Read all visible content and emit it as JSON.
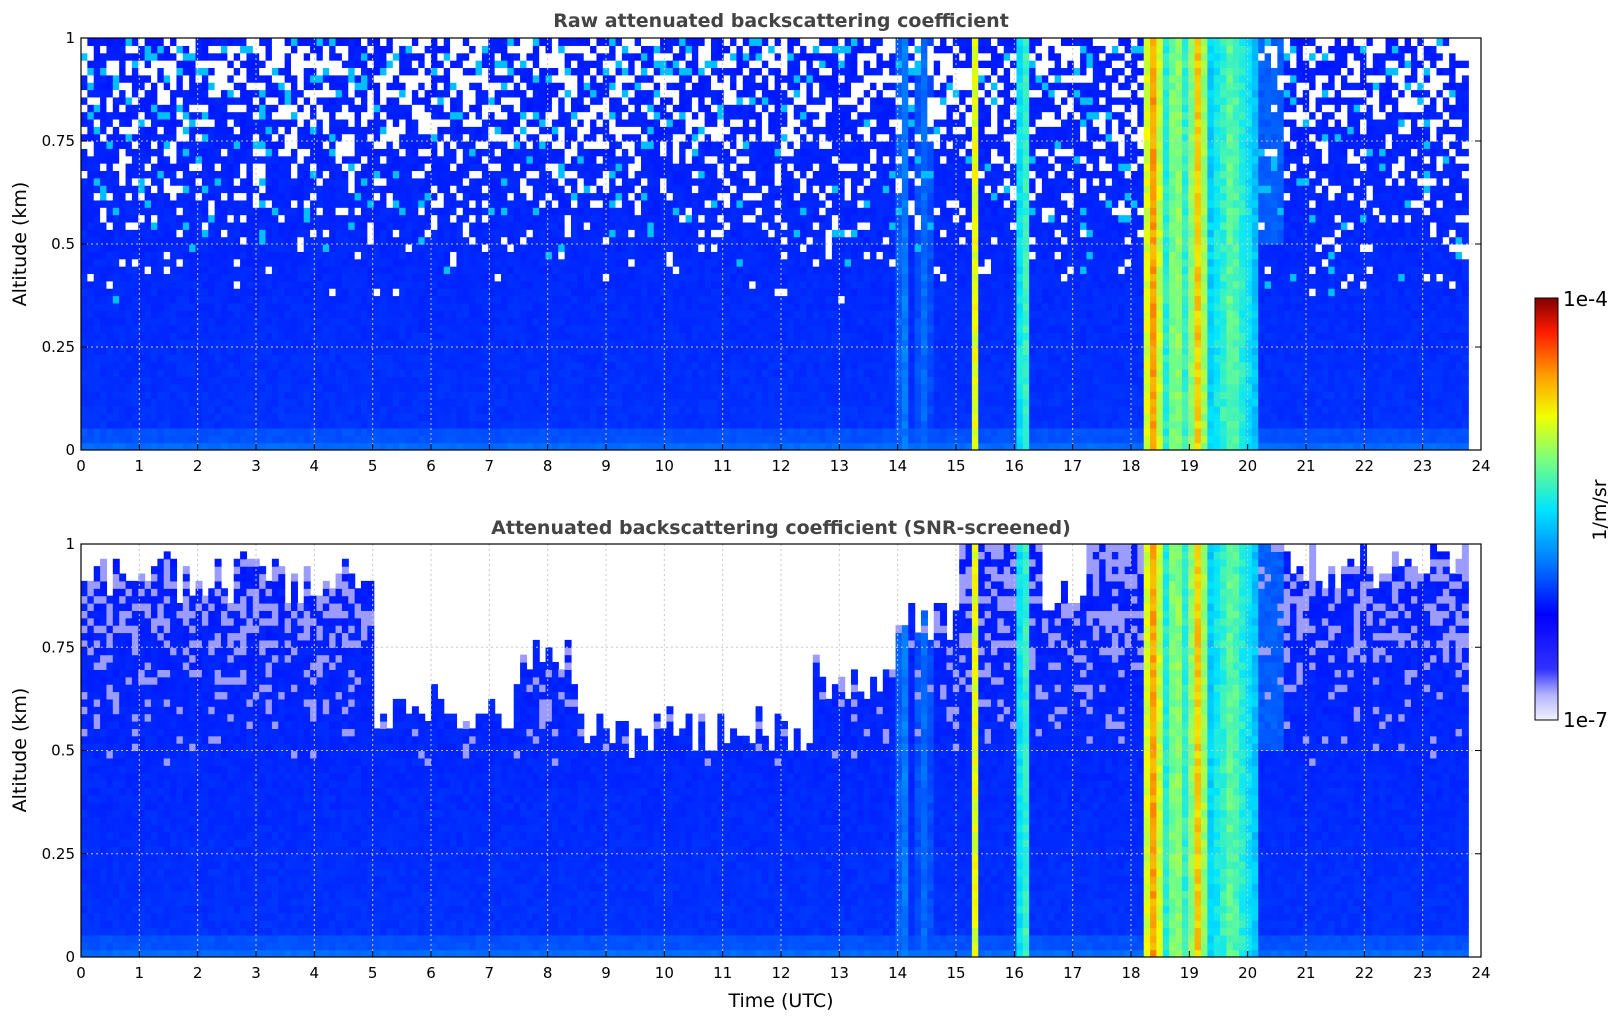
{
  "chart_data": [
    {
      "type": "heatmap",
      "title": "Raw attenuated backscattering coefficient",
      "xlabel": "",
      "ylabel": "Altitude (km)",
      "xlim": [
        0,
        24
      ],
      "ylim": [
        0,
        1
      ],
      "xticks": [
        "0",
        "1",
        "2",
        "3",
        "4",
        "5",
        "6",
        "7",
        "8",
        "9",
        "10",
        "11",
        "12",
        "13",
        "14",
        "15",
        "16",
        "17",
        "18",
        "19",
        "20",
        "21",
        "22",
        "23",
        "24"
      ],
      "yticks": [
        "0",
        "0.25",
        "0.5",
        "0.75",
        "1"
      ],
      "grid": true,
      "screened": false,
      "data_end_hour": 23.8
    },
    {
      "type": "heatmap",
      "title": "Attenuated backscattering coefficient (SNR-screened)",
      "xlabel": "Time (UTC)",
      "ylabel": "Altitude (km)",
      "xlim": [
        0,
        24
      ],
      "ylim": [
        0,
        1
      ],
      "xticks": [
        "0",
        "1",
        "2",
        "3",
        "4",
        "5",
        "6",
        "7",
        "8",
        "9",
        "10",
        "11",
        "12",
        "13",
        "14",
        "15",
        "16",
        "17",
        "18",
        "19",
        "20",
        "21",
        "22",
        "23",
        "24"
      ],
      "yticks": [
        "0",
        "0.25",
        "0.5",
        "0.75",
        "1"
      ],
      "grid": true,
      "screened": true,
      "data_end_hour": 23.8
    }
  ],
  "colorbar": {
    "label": "1/m/sr",
    "min_label": "1e-7",
    "max_label": "1e-4",
    "scale": "log",
    "colormap": "jet",
    "low_end_color": "#f2f2ff"
  },
  "cloud_features": [
    {
      "start": 14.0,
      "end": 14.2,
      "intensity": 0.38
    },
    {
      "start": 14.3,
      "end": 14.6,
      "intensity": 0.33
    },
    {
      "start": 15.22,
      "end": 15.42,
      "intensity": 0.72
    },
    {
      "start": 16.05,
      "end": 16.28,
      "intensity": 0.6
    },
    {
      "start": 18.2,
      "end": 18.55,
      "intensity": 0.82
    },
    {
      "start": 18.55,
      "end": 19.0,
      "intensity": 0.66
    },
    {
      "start": 19.0,
      "end": 19.3,
      "intensity": 0.78
    },
    {
      "start": 19.3,
      "end": 20.15,
      "intensity": 0.6
    }
  ]
}
